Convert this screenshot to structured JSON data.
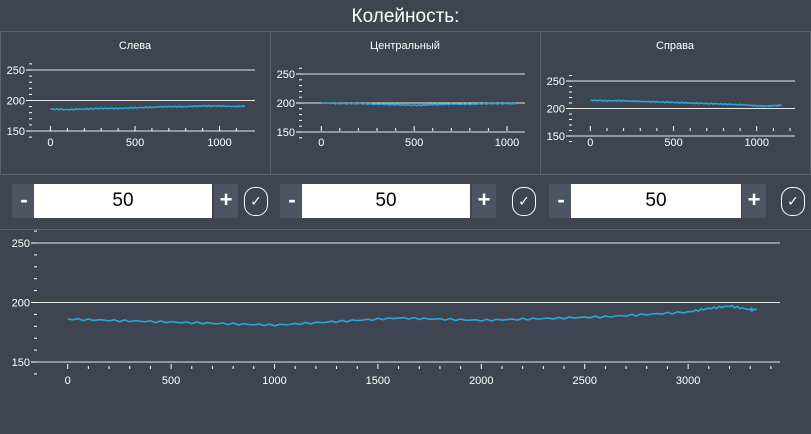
{
  "header": {
    "title": "Колейность:"
  },
  "controls": [
    {
      "minus": "-",
      "value": "50",
      "plus": "+",
      "apply": "✓"
    },
    {
      "minus": "-",
      "value": "50",
      "plus": "+",
      "apply": "✓"
    },
    {
      "minus": "-",
      "value": "50",
      "plus": "+",
      "apply": "✓"
    }
  ],
  "colors": {
    "background": "#3f4550",
    "line": "#2aa6d6",
    "grid": "#ffffff",
    "button": "#4d5564"
  },
  "chart_data": [
    {
      "type": "line",
      "title": "Слева",
      "xlim": [
        -50,
        1180
      ],
      "ylim": [
        140,
        262
      ],
      "xticks": [
        0,
        500,
        1000
      ],
      "yticks": [
        150,
        200,
        250
      ],
      "grid": true,
      "series": [
        {
          "x": [
            0,
            100,
            200,
            300,
            400,
            500,
            600,
            700,
            800,
            900,
            1000,
            1100,
            1150
          ],
          "y": [
            186,
            185,
            186,
            187,
            187,
            188,
            189,
            190,
            190,
            191,
            191,
            190,
            191
          ]
        }
      ]
    },
    {
      "type": "line",
      "title": "Центральный",
      "xlim": [
        -50,
        1070
      ],
      "ylim": [
        140,
        262
      ],
      "xticks": [
        0,
        500,
        1000
      ],
      "yticks": [
        150,
        200,
        250
      ],
      "grid": true,
      "series": [
        {
          "x": [
            0,
            100,
            200,
            300,
            400,
            500,
            600,
            700,
            800,
            900,
            1000,
            1050
          ],
          "y": [
            200,
            199,
            199,
            198,
            197,
            196,
            197,
            198,
            198,
            199,
            199,
            199
          ]
        }
      ]
    },
    {
      "type": "line",
      "title": "Справа",
      "xlim": [
        -50,
        1200
      ],
      "ylim": [
        140,
        262
      ],
      "xticks": [
        0,
        500,
        1000
      ],
      "yticks": [
        150,
        200,
        250
      ],
      "grid": true,
      "series": [
        {
          "x": [
            0,
            100,
            200,
            300,
            400,
            500,
            600,
            700,
            800,
            900,
            1000,
            1050,
            1100,
            1150
          ],
          "y": [
            215,
            214,
            214,
            213,
            212,
            211,
            210,
            209,
            208,
            207,
            205,
            204,
            205,
            206
          ]
        }
      ]
    },
    {
      "type": "line",
      "title": "",
      "xlim": [
        -100,
        3420
      ],
      "ylim": [
        140,
        262
      ],
      "xticks": [
        0,
        500,
        1000,
        1500,
        2000,
        2500,
        3000
      ],
      "yticks": [
        150,
        200,
        250
      ],
      "grid": true,
      "series": [
        {
          "x": [
            0,
            200,
            400,
            600,
            800,
            1000,
            1200,
            1400,
            1600,
            1800,
            2000,
            2200,
            2400,
            2600,
            2800,
            3000,
            3100,
            3200,
            3300,
            3330
          ],
          "y": [
            186,
            185,
            184,
            183,
            182,
            181,
            183,
            185,
            187,
            186,
            185,
            186,
            187,
            188,
            190,
            192,
            195,
            197,
            194,
            194
          ]
        }
      ]
    }
  ]
}
